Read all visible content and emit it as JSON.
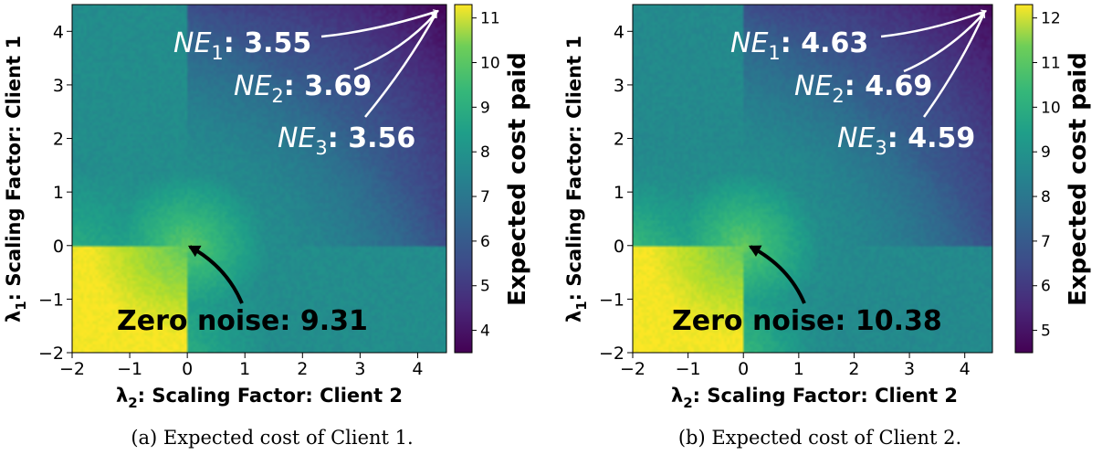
{
  "chart_data": [
    {
      "type": "heatmap",
      "panel": "a",
      "caption": "(a) Expected cost of Client 1.",
      "xlabel_sym": "λ",
      "xlabel_sub": "2",
      "xlabel_text": ": Scaling Factor: Client 2",
      "ylabel_sym": "λ",
      "ylabel_sub": "1",
      "ylabel_text": ": Scaling Factor: Client 1",
      "xlim": [
        -2,
        4.5
      ],
      "ylim": [
        -2,
        4.5
      ],
      "xticks": [
        "−2",
        "−1",
        "0",
        "1",
        "2",
        "3",
        "4"
      ],
      "xtick_values": [
        -2,
        -1,
        0,
        1,
        2,
        3,
        4
      ],
      "yticks": [
        "−2",
        "−1",
        "0",
        "1",
        "2",
        "3",
        "4"
      ],
      "ytick_values": [
        -2,
        -1,
        0,
        1,
        2,
        3,
        4
      ],
      "colorbar": {
        "label": "Expected cost paid",
        "range": [
          3.5,
          11.3
        ],
        "ticks": [
          "4",
          "5",
          "6",
          "7",
          "8",
          "9",
          "10",
          "11"
        ],
        "tick_values": [
          4,
          5,
          6,
          7,
          8,
          9,
          10,
          11
        ],
        "colormap": "viridis"
      },
      "annotations": [
        {
          "sym": "NE",
          "sub": "1",
          "label": ": ",
          "value": "3.55",
          "target": [
            4.5,
            4.5
          ]
        },
        {
          "sym": "NE",
          "sub": "2",
          "label": ": ",
          "value": "3.69",
          "target": [
            4.5,
            4.5
          ]
        },
        {
          "sym": "NE",
          "sub": "3",
          "label": ": ",
          "value": "3.56",
          "target": [
            4.5,
            4.5
          ]
        },
        {
          "label": "Zero noise: ",
          "value": "9.31",
          "target": [
            0,
            0
          ]
        }
      ],
      "field": {
        "low": 3.55,
        "zero": 9.31,
        "high": 11.2
      }
    },
    {
      "type": "heatmap",
      "panel": "b",
      "caption": "(b) Expected cost of Client 2.",
      "xlabel_sym": "λ",
      "xlabel_sub": "2",
      "xlabel_text": ": Scaling Factor: Client 2",
      "ylabel_sym": "λ",
      "ylabel_sub": "1",
      "ylabel_text": ": Scaling Factor: Client 1",
      "xlim": [
        -2,
        4.5
      ],
      "ylim": [
        -2,
        4.5
      ],
      "xticks": [
        "−2",
        "−1",
        "0",
        "1",
        "2",
        "3",
        "4"
      ],
      "xtick_values": [
        -2,
        -1,
        0,
        1,
        2,
        3,
        4
      ],
      "yticks": [
        "−2",
        "−1",
        "0",
        "1",
        "2",
        "3",
        "4"
      ],
      "ytick_values": [
        -2,
        -1,
        0,
        1,
        2,
        3,
        4
      ],
      "colorbar": {
        "label": "Expected cost paid",
        "range": [
          4.5,
          12.3
        ],
        "ticks": [
          "5",
          "6",
          "7",
          "8",
          "9",
          "10",
          "11",
          "12"
        ],
        "tick_values": [
          5,
          6,
          7,
          8,
          9,
          10,
          11,
          12
        ],
        "colormap": "viridis"
      },
      "annotations": [
        {
          "sym": "NE",
          "sub": "1",
          "label": ": ",
          "value": "4.63",
          "target": [
            4.5,
            4.5
          ]
        },
        {
          "sym": "NE",
          "sub": "2",
          "label": ": ",
          "value": "4.69",
          "target": [
            4.5,
            4.5
          ]
        },
        {
          "sym": "NE",
          "sub": "3",
          "label": ": ",
          "value": "4.59",
          "target": [
            4.5,
            4.5
          ]
        },
        {
          "label": "Zero noise: ",
          "value": "10.38",
          "target": [
            0,
            0
          ]
        }
      ],
      "field": {
        "low": 4.6,
        "zero": 10.38,
        "high": 12.2
      }
    }
  ]
}
